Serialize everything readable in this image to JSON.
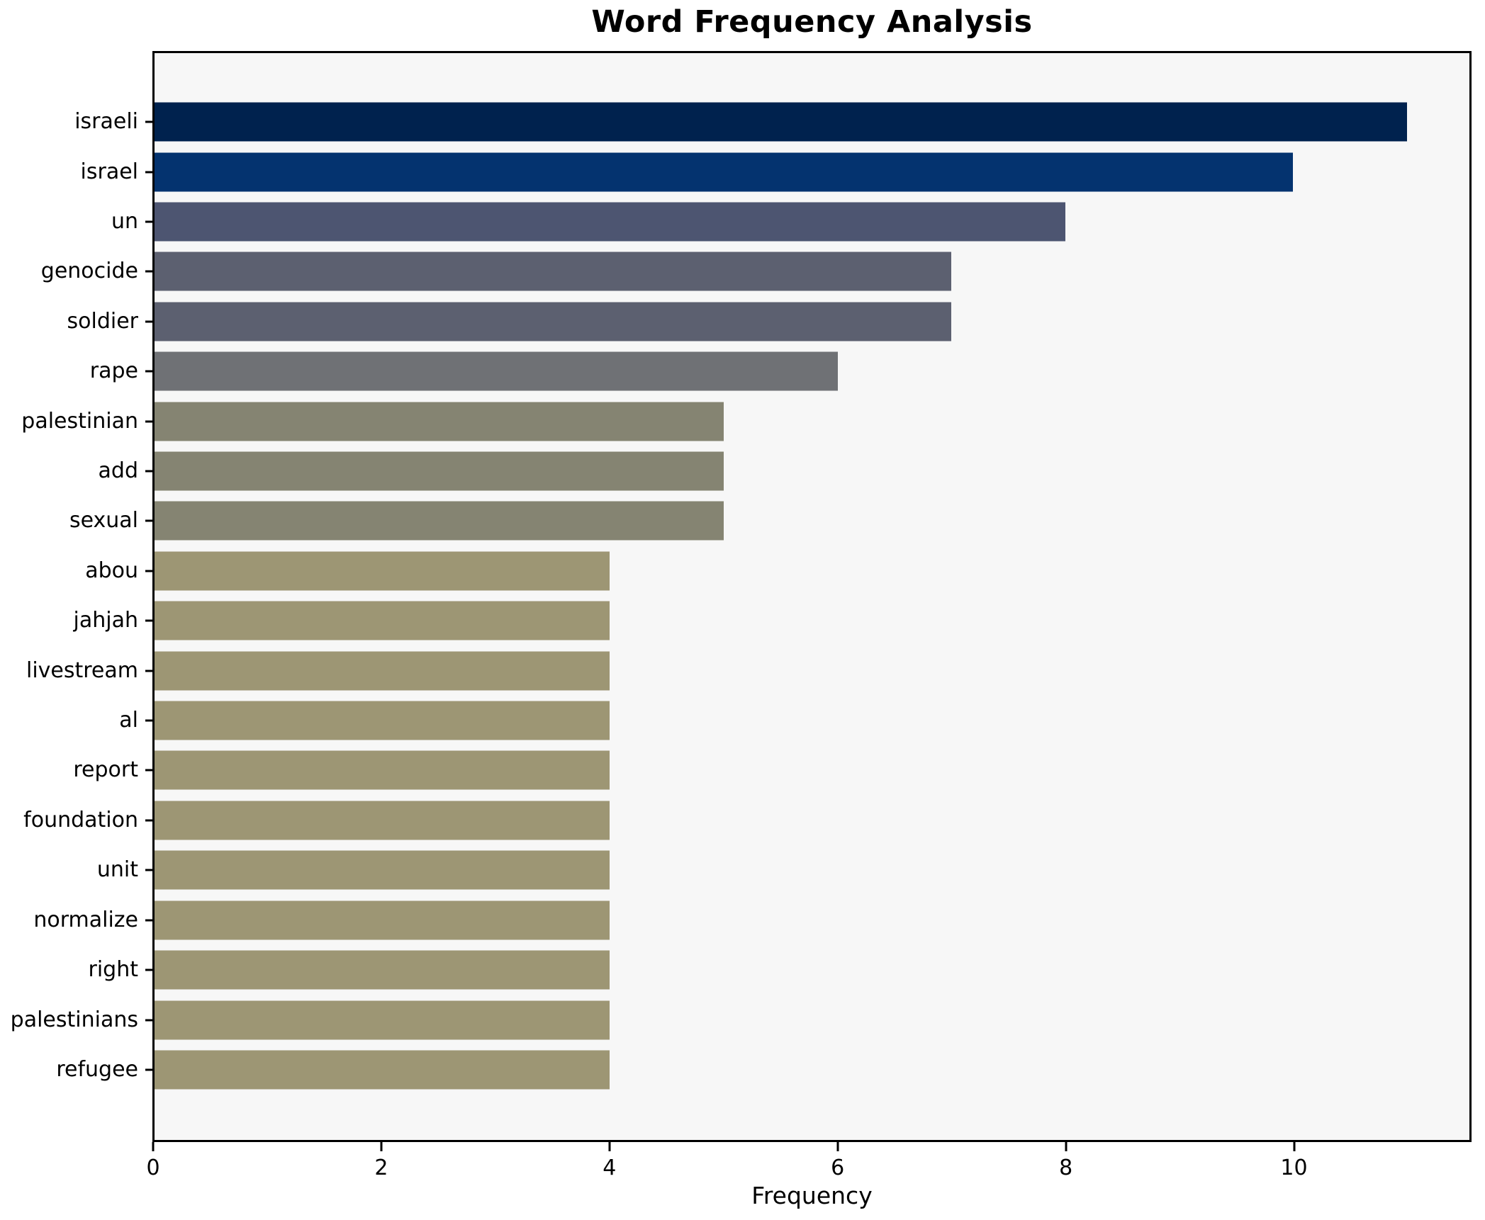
{
  "chart_data": {
    "type": "bar",
    "orientation": "horizontal",
    "title": "Word Frequency Analysis",
    "xlabel": "Frequency",
    "ylabel": "",
    "categories": [
      "israeli",
      "israel",
      "un",
      "genocide",
      "soldier",
      "rape",
      "palestinian",
      "add",
      "sexual",
      "abou",
      "jahjah",
      "livestream",
      "al",
      "report",
      "foundation",
      "unit",
      "normalize",
      "right",
      "palestinians",
      "refugee"
    ],
    "values": [
      11,
      10,
      8,
      7,
      7,
      6,
      5,
      5,
      5,
      4,
      4,
      4,
      4,
      4,
      4,
      4,
      4,
      4,
      4,
      4
    ],
    "bar_colors": [
      "#00224e",
      "#04336f",
      "#4d5571",
      "#5c6070",
      "#5c6070",
      "#6f7175",
      "#858472",
      "#858472",
      "#858472",
      "#9d9674",
      "#9d9674",
      "#9d9674",
      "#9d9674",
      "#9d9674",
      "#9d9674",
      "#9d9674",
      "#9d9674",
      "#9d9674",
      "#9d9674",
      "#9d9674"
    ],
    "xticks": [
      0,
      2,
      4,
      6,
      8,
      10
    ],
    "xlim": [
      0,
      11.55
    ],
    "grid": false,
    "legend": null,
    "plot_background": "#f7f7f7",
    "figure_background": "#ffffff"
  }
}
